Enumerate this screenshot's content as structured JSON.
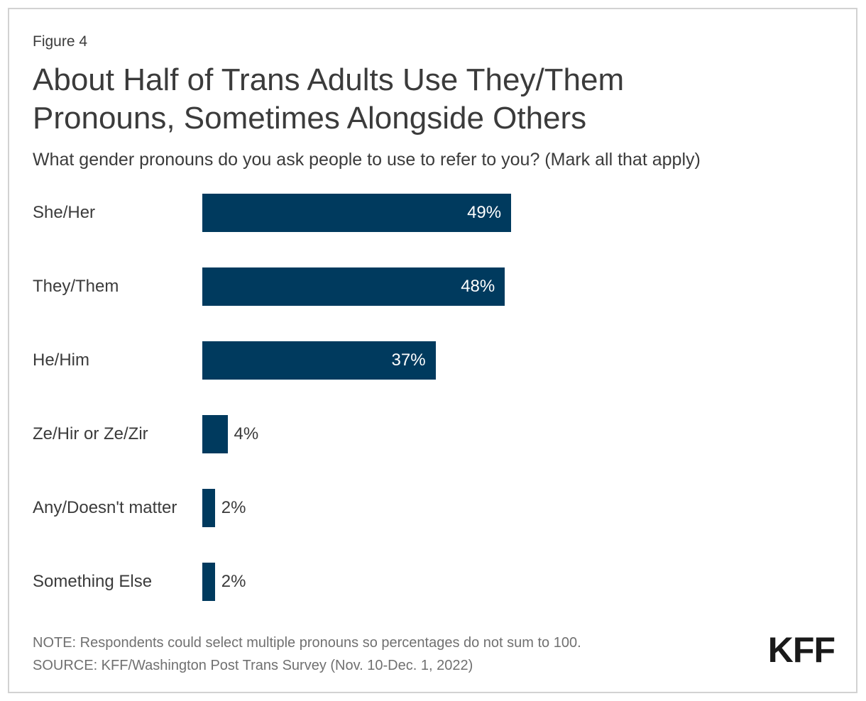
{
  "figure": {
    "label": "Figure 4"
  },
  "header": {
    "title": "About Half of Trans Adults Use They/Them Pronouns, Sometimes Alongside Others",
    "subtitle": "What gender pronouns do you ask people to use to refer to you? (Mark all that apply)"
  },
  "chart_data": {
    "type": "bar",
    "orientation": "horizontal",
    "title": "About Half of Trans Adults Use They/Them Pronouns, Sometimes Alongside Others",
    "subtitle": "What gender pronouns do you ask people to use to refer to you? (Mark all that apply)",
    "categories": [
      "She/Her",
      "They/Them",
      "He/Him",
      "Ze/Hir or Ze/Zir",
      "Any/Doesn't matter",
      "Something Else"
    ],
    "values": [
      49,
      48,
      37,
      4,
      2,
      2
    ],
    "value_labels": [
      "49%",
      "48%",
      "37%",
      "4%",
      "2%",
      "2%"
    ],
    "xlabel": "",
    "ylabel": "",
    "xlim": [
      0,
      55
    ],
    "grid": false,
    "legend": false,
    "bar_color": "#003A5E",
    "inside_value_color": "#FFFFFF",
    "outside_value_color": "#3B3B3B"
  },
  "footer": {
    "note": "NOTE: Respondents could select multiple pronouns so percentages do not sum to 100.",
    "source": "SOURCE: KFF/Washington Post Trans Survey (Nov. 10-Dec. 1, 2022)",
    "logo": "KFF"
  },
  "colors": {
    "bar": "#003A5E",
    "text_dark": "#3B3B3B",
    "text_muted": "#707070",
    "border": "#D2D2D2",
    "logo": "#1A1A1A"
  }
}
